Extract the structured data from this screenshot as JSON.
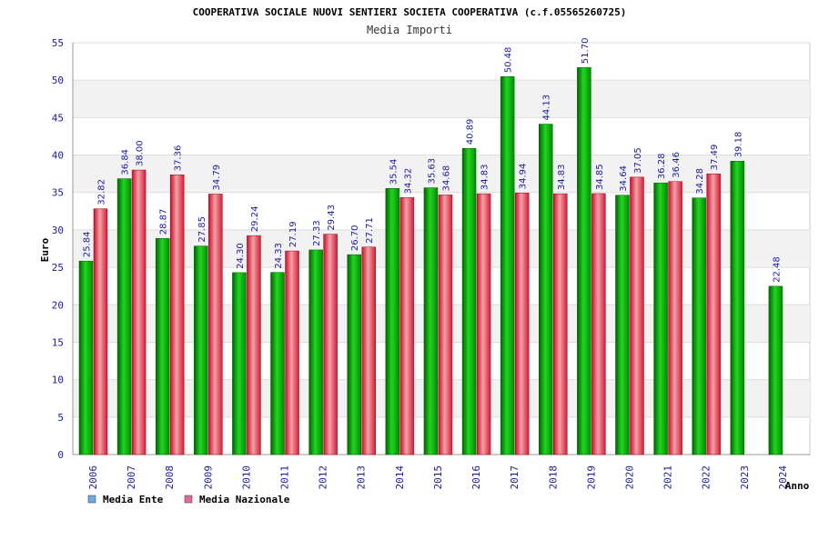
{
  "chart_data": {
    "type": "bar",
    "title": "COOPERATIVA SOCIALE NUOVI SENTIERI SOCIETA COOPERATIVA (c.f.05565260725)",
    "subtitle": "Media Importi",
    "xlabel": "Anno",
    "ylabel": "Euro",
    "ylim": [
      0,
      55
    ],
    "yticks": [
      0,
      5,
      10,
      15,
      20,
      25,
      30,
      35,
      40,
      45,
      50,
      55
    ],
    "grid": true,
    "legend_position": "bottom-left",
    "categories": [
      "2006",
      "2007",
      "2008",
      "2009",
      "2010",
      "2011",
      "2012",
      "2013",
      "2014",
      "2015",
      "2016",
      "2017",
      "2018",
      "2019",
      "2020",
      "2021",
      "2022",
      "2023",
      "2024"
    ],
    "series": [
      {
        "name": "Media Ente",
        "color": "#00b400",
        "legend_color": "#6fa8e8",
        "values": [
          25.84,
          36.84,
          28.87,
          27.85,
          24.3,
          24.33,
          27.33,
          26.7,
          35.54,
          35.63,
          40.89,
          50.48,
          44.13,
          51.7,
          34.64,
          36.28,
          34.28,
          39.18,
          22.48
        ],
        "labels": [
          "25.84",
          "36.84",
          "28.87",
          "27.85",
          "24.30",
          "24.33",
          "27.33",
          "26.70",
          "35.54",
          "35.63",
          "40.89",
          "50.48",
          "44.13",
          "51.70",
          "34.64",
          "36.28",
          "34.28",
          "39.18",
          "22.48"
        ]
      },
      {
        "name": "Media Nazionale",
        "color": "#e8283c",
        "legend_color": "#e26a9a",
        "values": [
          32.82,
          38.0,
          37.36,
          34.79,
          29.24,
          27.19,
          29.43,
          27.71,
          34.32,
          34.68,
          34.83,
          34.94,
          34.83,
          34.85,
          37.05,
          36.46,
          37.49,
          null,
          null
        ],
        "labels": [
          "32.82",
          "38.00",
          "37.36",
          "34.79",
          "29.24",
          "27.19",
          "29.43",
          "27.71",
          "34.32",
          "34.68",
          "34.83",
          "34.94",
          "34.83",
          "34.85",
          "37.05",
          "36.46",
          "37.49",
          null,
          null
        ]
      }
    ]
  }
}
